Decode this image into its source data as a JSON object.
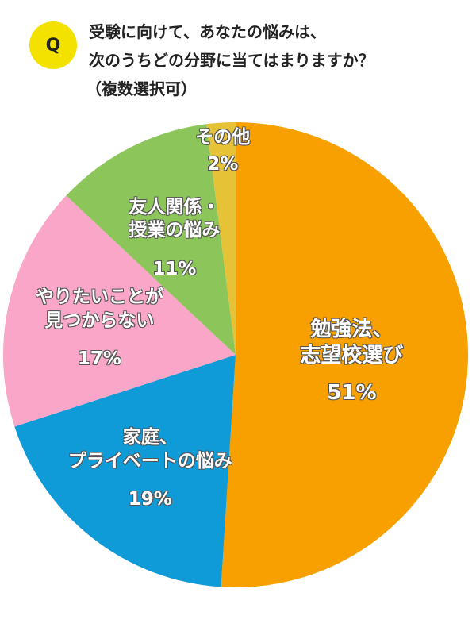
{
  "chart_data": {
    "type": "pie",
    "badge": "Q",
    "title": [
      "受験に向けて、あなたの悩みは、",
      "次のうちどの分野に当てはまりますか？",
      "（複数選択可）"
    ],
    "categories": [
      "勉強法、\n志望校選び",
      "家庭、\nプライベートの悩み",
      "やりたいことが\n見つからない",
      "友人関係・\n授業の悩み",
      "その他"
    ],
    "values": [
      51,
      19,
      17,
      11,
      2
    ],
    "value_labels": [
      "51%",
      "19%",
      "17%",
      "11%",
      "2%"
    ],
    "colors": [
      "#f7a000",
      "#0e9bd8",
      "#f9a6c8",
      "#8cc55a",
      "#e6c236"
    ]
  }
}
